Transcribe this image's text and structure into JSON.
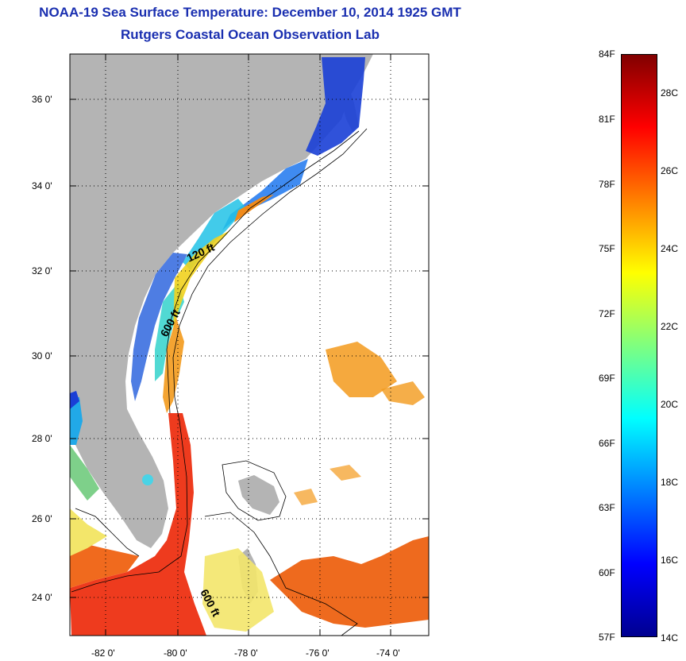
{
  "title": {
    "line1": "NOAA-19 Sea Surface Temperature:  December 10, 2014 1925 GMT",
    "line2": "Rutgers Coastal Ocean Observation Lab"
  },
  "map": {
    "lat_labels": [
      "36 0'",
      "34 0'",
      "32 0'",
      "30 0'",
      "28 0'",
      "26 0'",
      "24 0'"
    ],
    "lon_labels": [
      "-82 0'",
      "-80 0'",
      "-78 0'",
      "-76 0'",
      "-74 0'"
    ],
    "isobath_labels": [
      "120 ft",
      "600 ft",
      "600 ft"
    ],
    "colors": {
      "land": "#b4b4b4",
      "water": "#ffffff",
      "title": "#1a2fb0"
    }
  },
  "colorbar": {
    "fahrenheit_labels": [
      "84F",
      "81F",
      "78F",
      "75F",
      "72F",
      "69F",
      "66F",
      "63F",
      "60F",
      "57F"
    ],
    "celsius_labels": [
      "28C",
      "26C",
      "24C",
      "22C",
      "20C",
      "18C",
      "16C",
      "14C"
    ],
    "range_c": [
      14,
      29
    ],
    "colormap": "jet"
  }
}
